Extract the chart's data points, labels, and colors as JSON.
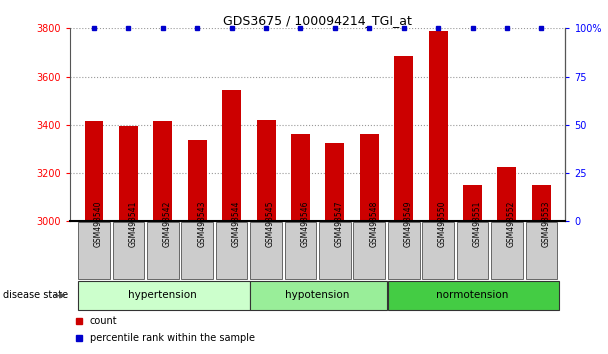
{
  "title": "GDS3675 / 100094214_TGI_at",
  "categories": [
    "GSM493540",
    "GSM493541",
    "GSM493542",
    "GSM493543",
    "GSM493544",
    "GSM493545",
    "GSM493546",
    "GSM493547",
    "GSM493548",
    "GSM493549",
    "GSM493550",
    "GSM493551",
    "GSM493552",
    "GSM493553"
  ],
  "count_values": [
    3415,
    3395,
    3415,
    3335,
    3545,
    3420,
    3360,
    3325,
    3360,
    3685,
    3790,
    3150,
    3225,
    3150
  ],
  "percentile_values": [
    100,
    100,
    100,
    100,
    100,
    100,
    100,
    100,
    100,
    100,
    100,
    100,
    100,
    100
  ],
  "ylim_left": [
    3000,
    3800
  ],
  "ylim_right": [
    0,
    100
  ],
  "yticks_left": [
    3000,
    3200,
    3400,
    3600,
    3800
  ],
  "yticks_right": [
    0,
    25,
    50,
    75,
    100
  ],
  "ytick_labels_right": [
    "0",
    "25",
    "50",
    "75",
    "100%"
  ],
  "bar_color": "#cc0000",
  "percentile_color": "#0000cc",
  "groups": [
    {
      "label": "hypertension",
      "start": 0,
      "end": 5,
      "color": "#ccffcc"
    },
    {
      "label": "hypotension",
      "start": 5,
      "end": 9,
      "color": "#99ee99"
    },
    {
      "label": "normotension",
      "start": 9,
      "end": 14,
      "color": "#44cc44"
    }
  ],
  "legend_count_label": "count",
  "legend_percentile_label": "percentile rank within the sample",
  "disease_state_label": "disease state",
  "background_color": "#ffffff",
  "grid_color": "#999999",
  "cat_box_color": "#cccccc",
  "spine_color": "#555555"
}
